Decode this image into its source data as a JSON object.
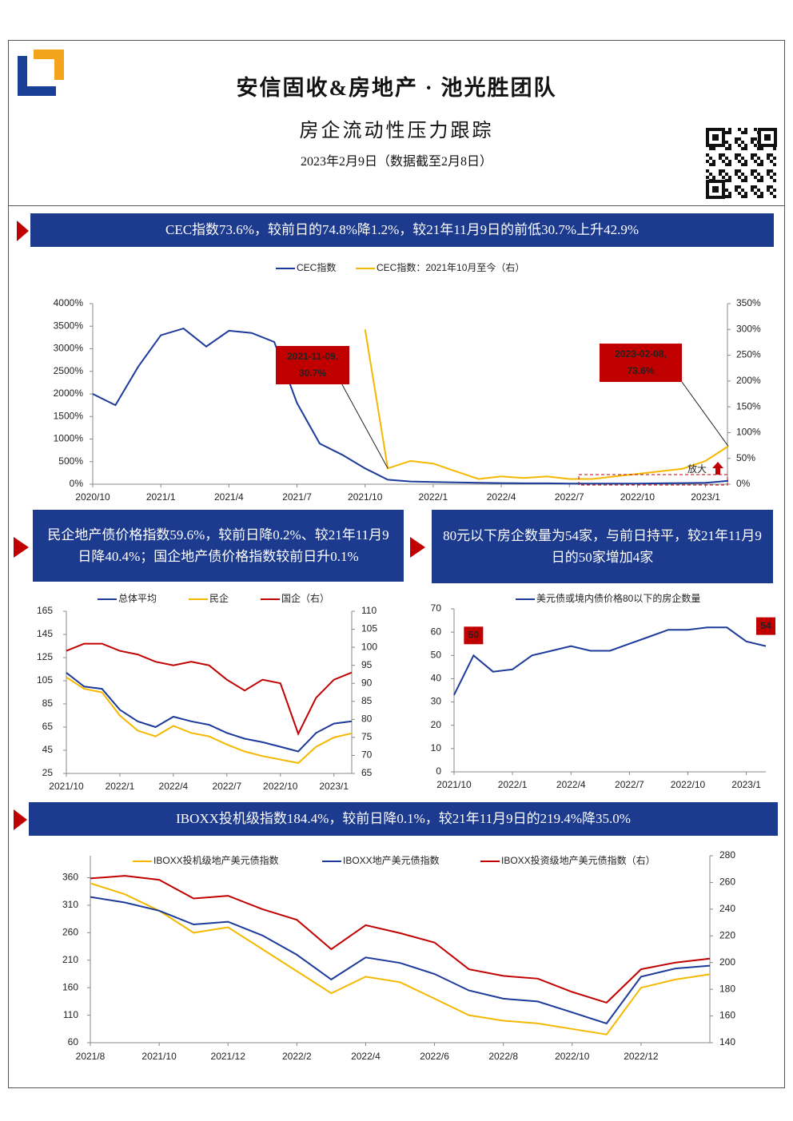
{
  "header": {
    "title": "安信固收&房地产 · 池光胜团队",
    "subtitle": "房企流动性压力跟踪",
    "date": "2023年2月9日（数据截至2月8日）"
  },
  "banners": [
    "CEC指数73.6%，较前日的74.8%降1.2%，较21年11月9日的前低30.7%上升42.9%",
    "民企地产债价格指数59.6%，较前日降0.2%、较21年11月9日降40.4%；国企地产债价格指数较前日升0.1%",
    "80元以下房企数量为54家，与前日持平，较21年11月9日的50家增加4家",
    "IBOXX投机级指数184.4%，较前日降0.1%，较21年11月9日的219.4%降35.0%"
  ],
  "chart_data": [
    {
      "type": "line",
      "categories": [
        "2020/10",
        null,
        null,
        "2021/1",
        null,
        null,
        "2021/4",
        null,
        null,
        "2021/7",
        null,
        null,
        "2021/10",
        null,
        null,
        "2022/1",
        null,
        null,
        "2022/4",
        null,
        null,
        "2022/7",
        null,
        null,
        "2022/10",
        null,
        null,
        "2023/1",
        null
      ],
      "series": [
        {
          "name": "CEC指数",
          "color": "#1c3a9a",
          "values": [
            2000,
            1750,
            2600,
            3300,
            3450,
            3050,
            3400,
            3350,
            3150,
            1800,
            900,
            650,
            350,
            100,
            60,
            50,
            40,
            30,
            25,
            20,
            20,
            15,
            15,
            15,
            15,
            20,
            25,
            30,
            73.6
          ]
        },
        {
          "name": "CEC指数：2021年10月至今（右）",
          "color": "#f5b800",
          "axis": "y2",
          "values": [
            null,
            null,
            null,
            null,
            null,
            null,
            null,
            null,
            null,
            null,
            null,
            null,
            300,
            30.7,
            45,
            40,
            25,
            10,
            15,
            12,
            15,
            10,
            10,
            15,
            20,
            25,
            30,
            45,
            73.6
          ]
        }
      ],
      "ylim": [
        0,
        4000
      ],
      "yticks": [
        {
          "value": 0,
          "label": "0%"
        },
        {
          "value": 500,
          "label": "500%"
        },
        {
          "value": 1000,
          "label": "1000%"
        },
        {
          "value": 1500,
          "label": "1500%"
        },
        {
          "value": 2000,
          "label": "2000%"
        },
        {
          "value": 2500,
          "label": "2500%"
        },
        {
          "value": 3000,
          "label": "3000%"
        },
        {
          "value": 3500,
          "label": "3500%"
        },
        {
          "value": 4000,
          "label": "4000%"
        }
      ],
      "y2lim": [
        0,
        350
      ],
      "y2ticks": [
        {
          "value": 0,
          "label": "0%"
        },
        {
          "value": 50,
          "label": "50%"
        },
        {
          "value": 100,
          "label": "100%"
        },
        {
          "value": 150,
          "label": "150%"
        },
        {
          "value": 200,
          "label": "200%"
        },
        {
          "value": 250,
          "label": "250%"
        },
        {
          "value": 300,
          "label": "300%"
        },
        {
          "value": 350,
          "label": "350%"
        }
      ],
      "annotations": [
        [
          "2021-11-09,",
          "30.7%"
        ],
        [
          "2023-02-08,",
          "73.6%"
        ]
      ],
      "zoom_label": "放大"
    },
    {
      "type": "line",
      "categories": [
        "2021/10",
        null,
        null,
        "2022/1",
        null,
        null,
        "2022/4",
        null,
        null,
        "2022/7",
        null,
        null,
        "2022/10",
        null,
        null,
        "2023/1",
        null
      ],
      "series": [
        {
          "name": "总体平均",
          "color": "#1c3a9a",
          "values": [
            112,
            100,
            98,
            80,
            70,
            65,
            74,
            70,
            67,
            60,
            55,
            52,
            48,
            44,
            60,
            68,
            70
          ]
        },
        {
          "name": "民企",
          "color": "#f5b800",
          "values": [
            108,
            98,
            95,
            75,
            62,
            57,
            66,
            60,
            57,
            50,
            44,
            40,
            37,
            34,
            48,
            56,
            59.6
          ]
        },
        {
          "name": "国企（右）",
          "color": "#c00000",
          "axis": "y2",
          "values": [
            99,
            101,
            101,
            99,
            98,
            96,
            95,
            96,
            95,
            91,
            88,
            91,
            90,
            76,
            86,
            91,
            93
          ]
        }
      ],
      "ylim": [
        25,
        165
      ],
      "yticks": [
        25,
        45,
        65,
        85,
        105,
        125,
        145,
        165
      ],
      "y2lim": [
        65,
        110
      ],
      "y2ticks": [
        65,
        70,
        75,
        80,
        85,
        90,
        95,
        100,
        105,
        110
      ]
    },
    {
      "type": "line",
      "categories": [
        "2021/10",
        null,
        null,
        "2022/1",
        null,
        null,
        "2022/4",
        null,
        null,
        "2022/7",
        null,
        null,
        "2022/10",
        null,
        null,
        "2023/1",
        null
      ],
      "series": [
        {
          "name": "美元债或境内债价格80以下的房企数量",
          "color": "#1c3a9a",
          "values": [
            33,
            50,
            43,
            44,
            50,
            52,
            54,
            52,
            52,
            55,
            58,
            61,
            61,
            62,
            62,
            56,
            54
          ]
        }
      ],
      "ylim": [
        0,
        70
      ],
      "yticks": [
        0,
        10,
        20,
        30,
        40,
        50,
        60,
        70
      ],
      "label_points": [
        1,
        16
      ]
    },
    {
      "type": "line",
      "categories": [
        "2021/8",
        null,
        "2021/10",
        null,
        "2021/12",
        null,
        "2022/2",
        null,
        "2022/4",
        null,
        "2022/6",
        null,
        "2022/8",
        null,
        "2022/10",
        null,
        "2022/12",
        null,
        null
      ],
      "series": [
        {
          "name": "IBOXX投机级地产美元债指数",
          "color": "#f5b800",
          "values": [
            350,
            330,
            300,
            260,
            270,
            230,
            190,
            150,
            180,
            170,
            140,
            110,
            100,
            95,
            85,
            75,
            160,
            175,
            184.4
          ]
        },
        {
          "name": "IBOXX地产美元债指数",
          "color": "#1c3a9a",
          "values": [
            325,
            315,
            300,
            275,
            280,
            255,
            220,
            175,
            215,
            205,
            185,
            155,
            140,
            135,
            115,
            95,
            180,
            195,
            200
          ]
        },
        {
          "name": "IBOXX投资级地产美元债指数（右）",
          "color": "#c00000",
          "axis": "y2",
          "values": [
            263,
            265,
            262,
            248,
            250,
            240,
            232,
            210,
            228,
            222,
            215,
            195,
            190,
            188,
            178,
            170,
            195,
            200,
            203
          ]
        }
      ],
      "ylim": [
        60,
        400
      ],
      "yticks": [
        60,
        110,
        160,
        210,
        260,
        310,
        360
      ],
      "y2lim": [
        140,
        280
      ],
      "y2ticks": [
        140,
        160,
        180,
        200,
        220,
        240,
        260,
        280
      ]
    }
  ]
}
